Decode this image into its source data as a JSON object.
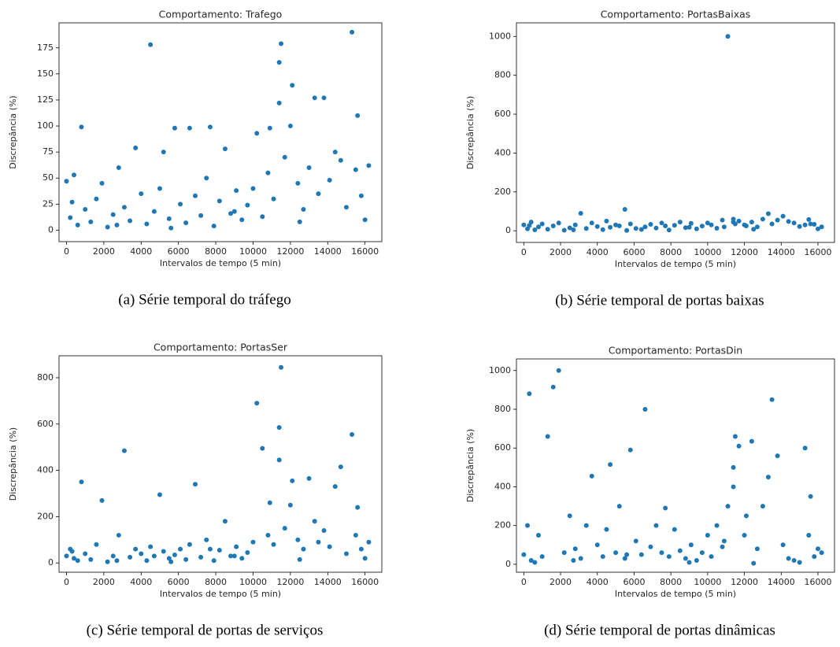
{
  "chart_data": [
    {
      "type": "scatter",
      "title": "Comportamento: Trafego",
      "xlabel": "Intervalos de tempo (5 min)",
      "ylabel": "Discrepância (%)",
      "caption": "(a) Série temporal do tráfego",
      "color": "#1f77b4",
      "xlim": [
        -400,
        16900
      ],
      "ylim": [
        -11,
        199
      ],
      "xticks": [
        0,
        2000,
        4000,
        6000,
        8000,
        10000,
        12000,
        14000,
        16000
      ],
      "yticks": [
        0,
        25,
        50,
        75,
        100,
        125,
        150,
        175
      ],
      "x": [
        0,
        200,
        400,
        600,
        800,
        1000,
        1300,
        1600,
        1900,
        2200,
        2500,
        2800,
        3100,
        3400,
        3700,
        4000,
        4300,
        4500,
        4700,
        5000,
        5200,
        5500,
        5800,
        6100,
        6400,
        6600,
        6900,
        7200,
        7500,
        7700,
        7900,
        8200,
        8500,
        8800,
        9100,
        9400,
        9700,
        10000,
        10200,
        10500,
        10800,
        10900,
        11100,
        11400,
        11400,
        11500,
        11700,
        12000,
        12100,
        12400,
        12700,
        13000,
        13300,
        13500,
        13800,
        14100,
        14400,
        14700,
        15000,
        15300,
        15500,
        15600,
        15800,
        16000,
        16200,
        300,
        2700,
        5600,
        9000,
        12500
      ],
      "values": [
        47,
        12,
        53,
        5,
        99,
        20,
        8,
        30,
        45,
        3,
        15,
        60,
        22,
        9,
        79,
        35,
        6,
        178,
        18,
        40,
        75,
        11,
        98,
        25,
        7,
        98,
        33,
        14,
        50,
        99,
        4,
        28,
        78,
        16,
        38,
        10,
        24,
        40,
        93,
        13,
        55,
        98,
        30,
        122,
        161,
        179,
        70,
        100,
        139,
        45,
        20,
        60,
        127,
        35,
        127,
        48,
        75,
        67,
        22,
        190,
        58,
        110,
        33,
        10,
        62,
        27,
        5,
        2,
        18,
        8
      ]
    },
    {
      "type": "scatter",
      "title": "Comportamento: PortasBaixas",
      "xlabel": "Intervalos de tempo (5 min)",
      "ylabel": "Discrepância (%)",
      "caption": "(b) Série temporal de portas baixas",
      "color": "#1f77b4",
      "xlim": [
        -400,
        16900
      ],
      "ylim": [
        -60,
        1070
      ],
      "xticks": [
        0,
        2000,
        4000,
        6000,
        8000,
        10000,
        12000,
        14000,
        16000
      ],
      "yticks": [
        0,
        200,
        400,
        600,
        800,
        1000
      ],
      "x": [
        0,
        200,
        400,
        600,
        800,
        1000,
        1300,
        1600,
        1900,
        2200,
        2500,
        2800,
        3100,
        3400,
        3700,
        4000,
        4300,
        4500,
        4700,
        5000,
        5200,
        5500,
        5800,
        6100,
        6400,
        6600,
        6900,
        7200,
        7500,
        7700,
        7900,
        8200,
        8500,
        8800,
        9100,
        9400,
        9700,
        10000,
        10200,
        10500,
        10800,
        10900,
        11100,
        11400,
        11400,
        11500,
        11700,
        12000,
        12100,
        12400,
        12700,
        13000,
        13300,
        13500,
        13800,
        14100,
        14400,
        14700,
        15000,
        15300,
        15500,
        15600,
        15800,
        16000,
        16200,
        300,
        2700,
        5600,
        9000,
        12500
      ],
      "values": [
        30,
        10,
        45,
        5,
        20,
        35,
        8,
        25,
        40,
        3,
        15,
        30,
        90,
        12,
        40,
        22,
        6,
        50,
        18,
        30,
        25,
        110,
        35,
        12,
        7,
        20,
        33,
        14,
        40,
        25,
        4,
        28,
        45,
        16,
        38,
        10,
        24,
        40,
        30,
        13,
        55,
        20,
        1000,
        45,
        60,
        35,
        50,
        30,
        25,
        45,
        20,
        60,
        88,
        35,
        55,
        75,
        48,
        40,
        22,
        30,
        58,
        35,
        33,
        10,
        20,
        27,
        5,
        2,
        18,
        8
      ]
    },
    {
      "type": "scatter",
      "title": "Comportamento: PortasSer",
      "xlabel": "Intervalos de tempo (5 min)",
      "ylabel": "Discrepância (%)",
      "caption": "(c) Série temporal de portas de serviços",
      "color": "#1f77b4",
      "xlim": [
        -400,
        16900
      ],
      "ylim": [
        -40,
        895
      ],
      "xticks": [
        0,
        2000,
        4000,
        6000,
        8000,
        10000,
        12000,
        14000,
        16000
      ],
      "yticks": [
        0,
        200,
        400,
        600,
        800
      ],
      "x": [
        0,
        200,
        400,
        600,
        800,
        1000,
        1300,
        1600,
        1900,
        2200,
        2500,
        2800,
        3100,
        3400,
        3700,
        4000,
        4300,
        4500,
        4700,
        5000,
        5200,
        5500,
        5800,
        6100,
        6400,
        6600,
        6900,
        7200,
        7500,
        7700,
        7900,
        8200,
        8500,
        8800,
        9100,
        9400,
        9700,
        10000,
        10200,
        10500,
        10800,
        10900,
        11100,
        11400,
        11400,
        11500,
        11700,
        12000,
        12100,
        12400,
        12700,
        13000,
        13300,
        13500,
        13800,
        14100,
        14400,
        14700,
        15000,
        15300,
        15500,
        15600,
        15800,
        16000,
        16200,
        300,
        2700,
        5600,
        9000,
        12500
      ],
      "values": [
        30,
        60,
        20,
        10,
        350,
        40,
        15,
        80,
        270,
        5,
        30,
        120,
        485,
        25,
        60,
        40,
        10,
        70,
        30,
        295,
        50,
        20,
        35,
        60,
        15,
        80,
        340,
        25,
        100,
        60,
        10,
        55,
        180,
        30,
        70,
        20,
        45,
        90,
        690,
        495,
        120,
        260,
        80,
        585,
        445,
        845,
        150,
        250,
        355,
        100,
        60,
        365,
        180,
        90,
        140,
        70,
        330,
        415,
        40,
        555,
        120,
        240,
        60,
        20,
        90,
        50,
        10,
        5,
        30,
        15
      ]
    },
    {
      "type": "scatter",
      "title": "Comportamento: PortasDin",
      "xlabel": "Intervalos de tempo (5 min)",
      "ylabel": "Discrepância (%)",
      "caption": "(d) Série temporal de portas dinâmicas",
      "color": "#1f77b4",
      "xlim": [
        -400,
        16900
      ],
      "ylim": [
        -41,
        1060
      ],
      "xticks": [
        0,
        2000,
        4000,
        6000,
        8000,
        10000,
        12000,
        14000,
        16000
      ],
      "yticks": [
        0,
        200,
        400,
        600,
        800,
        1000
      ],
      "x": [
        0,
        200,
        400,
        600,
        800,
        1000,
        1300,
        1600,
        1900,
        2200,
        2500,
        2800,
        3100,
        3400,
        3700,
        4000,
        4300,
        4500,
        4700,
        5000,
        5200,
        5500,
        5800,
        6100,
        6400,
        6600,
        6900,
        7200,
        7500,
        7700,
        7900,
        8200,
        8500,
        8800,
        9100,
        9400,
        9700,
        10000,
        10200,
        10500,
        10800,
        10900,
        11100,
        11400,
        11400,
        11500,
        11700,
        12000,
        12100,
        12400,
        12700,
        13000,
        13300,
        13500,
        13800,
        14100,
        14400,
        14700,
        15000,
        15300,
        15500,
        15600,
        15800,
        16000,
        16200,
        300,
        2700,
        5600,
        9000,
        12500
      ],
      "values": [
        50,
        200,
        20,
        10,
        150,
        40,
        660,
        915,
        1000,
        60,
        250,
        80,
        30,
        200,
        455,
        100,
        40,
        180,
        515,
        60,
        300,
        30,
        590,
        120,
        50,
        800,
        90,
        200,
        60,
        290,
        40,
        180,
        70,
        30,
        100,
        20,
        60,
        150,
        40,
        200,
        90,
        120,
        300,
        400,
        500,
        660,
        610,
        150,
        250,
        635,
        80,
        300,
        450,
        850,
        560,
        100,
        30,
        20,
        10,
        600,
        150,
        350,
        40,
        80,
        60,
        880,
        20,
        50,
        10,
        5
      ]
    }
  ]
}
